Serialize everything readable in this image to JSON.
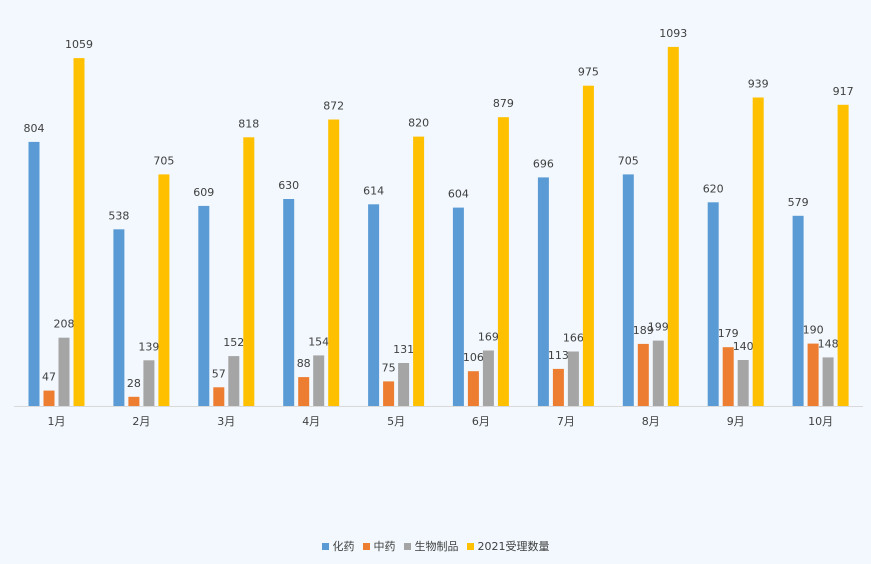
{
  "chart_data": {
    "type": "bar",
    "title": "",
    "xlabel": "",
    "ylabel": "",
    "ylim": [
      0,
      1100
    ],
    "grid": false,
    "legend_position": "bottom",
    "categories": [
      "1月",
      "2月",
      "3月",
      "4月",
      "5月",
      "6月",
      "7月",
      "8月",
      "9月",
      "10月"
    ],
    "series": [
      {
        "name": "化药",
        "color": "#5b9bd5",
        "values": [
          804,
          538,
          609,
          630,
          614,
          604,
          696,
          705,
          620,
          579
        ]
      },
      {
        "name": "中药",
        "color": "#ed7d31",
        "values": [
          47,
          28,
          57,
          88,
          75,
          106,
          113,
          189,
          179,
          190
        ]
      },
      {
        "name": "生物制品",
        "color": "#a5a5a5",
        "values": [
          208,
          139,
          152,
          154,
          131,
          169,
          166,
          199,
          140,
          148
        ]
      },
      {
        "name": "2021受理数量",
        "color": "#ffc000",
        "values": [
          1059,
          705,
          818,
          872,
          820,
          879,
          975,
          1093,
          939,
          917
        ]
      }
    ]
  }
}
